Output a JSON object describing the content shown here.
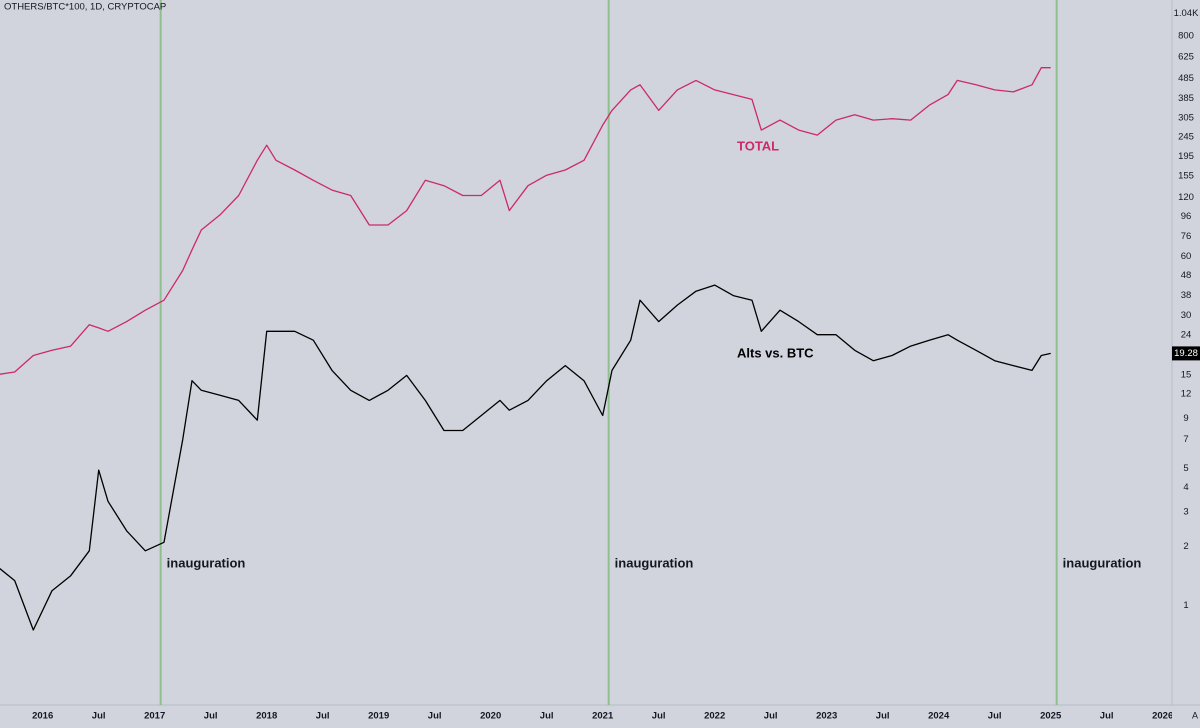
{
  "chart_data": {
    "type": "line",
    "title": "OTHERS/BTC*100, 1D, CRYPTOCAP",
    "log_scale": true,
    "grid": false,
    "x": [
      "2015-08",
      "2015-10",
      "2015-12",
      "2016-02",
      "2016-04",
      "2016-06",
      "2016-07",
      "2016-08",
      "2016-10",
      "2016-12",
      "2017-02",
      "2017-04",
      "2017-05",
      "2017-06",
      "2017-08",
      "2017-10",
      "2017-12",
      "2018-01",
      "2018-02",
      "2018-04",
      "2018-06",
      "2018-08",
      "2018-10",
      "2018-12",
      "2019-02",
      "2019-04",
      "2019-06",
      "2019-08",
      "2019-10",
      "2019-12",
      "2020-02",
      "2020-03",
      "2020-05",
      "2020-07",
      "2020-09",
      "2020-11",
      "2021-01",
      "2021-02",
      "2021-04",
      "2021-05",
      "2021-07",
      "2021-09",
      "2021-11",
      "2022-01",
      "2022-03",
      "2022-05",
      "2022-06",
      "2022-08",
      "2022-10",
      "2022-12",
      "2023-02",
      "2023-04",
      "2023-06",
      "2023-08",
      "2023-10",
      "2023-12",
      "2024-02",
      "2024-03",
      "2024-05",
      "2024-07",
      "2024-09",
      "2024-11",
      "2024-12",
      "2025-01"
    ],
    "series": [
      {
        "name": "TOTAL",
        "color": "#cc2a68",
        "values": [
          15,
          15.5,
          18.8,
          20,
          21,
          27,
          26,
          25,
          28,
          32,
          36,
          51,
          65,
          82,
          98,
          123,
          186,
          222,
          186,
          166,
          147,
          131,
          123,
          87,
          87,
          103,
          147,
          138,
          123,
          123,
          147,
          103,
          138,
          156,
          166,
          186,
          281,
          334,
          425,
          451,
          334,
          425,
          475,
          425,
          402,
          380,
          265,
          298,
          265,
          250,
          298,
          317,
          298,
          303,
          298,
          355,
          402,
          475,
          451,
          425,
          415,
          451,
          551,
          551
        ]
      },
      {
        "name": "Alts vs. BTC",
        "color": "#000000",
        "values": [
          1.6,
          1.34,
          0.75,
          1.19,
          1.42,
          1.9,
          4.9,
          3.4,
          2.4,
          1.9,
          2.1,
          7,
          14,
          12.5,
          11.8,
          11.1,
          8.8,
          25,
          25,
          25,
          22.5,
          15.8,
          12.5,
          11.1,
          12.5,
          14.9,
          11.1,
          7.8,
          7.8,
          9.3,
          11.1,
          9.9,
          11.1,
          14,
          16.7,
          14,
          9.3,
          15.8,
          22.5,
          36,
          28,
          34,
          40,
          43,
          38,
          36,
          25,
          32,
          28,
          24,
          24,
          20,
          17.7,
          18.8,
          21,
          22.5,
          24,
          22.5,
          20,
          17.7,
          16.7,
          15.8,
          18.8,
          19.28
        ]
      }
    ],
    "xlim": [
      "2015-08",
      "2026-02"
    ],
    "xticks": [
      {
        "value": "2016-01",
        "label": "2016"
      },
      {
        "value": "2016-07",
        "label": "Jul"
      },
      {
        "value": "2017-01",
        "label": "2017"
      },
      {
        "value": "2017-07",
        "label": "Jul"
      },
      {
        "value": "2018-01",
        "label": "2018"
      },
      {
        "value": "2018-07",
        "label": "Jul"
      },
      {
        "value": "2019-01",
        "label": "2019"
      },
      {
        "value": "2019-07",
        "label": "Jul"
      },
      {
        "value": "2020-01",
        "label": "2020"
      },
      {
        "value": "2020-07",
        "label": "Jul"
      },
      {
        "value": "2021-01",
        "label": "2021"
      },
      {
        "value": "2021-07",
        "label": "Jul"
      },
      {
        "value": "2022-01",
        "label": "2022"
      },
      {
        "value": "2022-07",
        "label": "Jul"
      },
      {
        "value": "2023-01",
        "label": "2023"
      },
      {
        "value": "2023-07",
        "label": "Jul"
      },
      {
        "value": "2024-01",
        "label": "2024"
      },
      {
        "value": "2024-07",
        "label": "Jul"
      },
      {
        "value": "2025-01",
        "label": "2025"
      },
      {
        "value": "2025-07",
        "label": "Jul"
      },
      {
        "value": "2026-01",
        "label": "2026"
      }
    ],
    "ylim": [
      0.33,
      1220
    ],
    "yticks": [
      1,
      2,
      3,
      4,
      5,
      7,
      9,
      12,
      15,
      24,
      30,
      38,
      48,
      60,
      76,
      96,
      120,
      155,
      195,
      245,
      305,
      385,
      485,
      625,
      800,
      {
        "value": 1040,
        "label": "1.04K"
      }
    ],
    "events": [
      {
        "x": "2017-01",
        "label": "inauguration"
      },
      {
        "x": "2021-01",
        "label": "inauguration"
      },
      {
        "x": "2025-01",
        "label": "inauguration"
      }
    ],
    "auto_scale_label": "A"
  }
}
